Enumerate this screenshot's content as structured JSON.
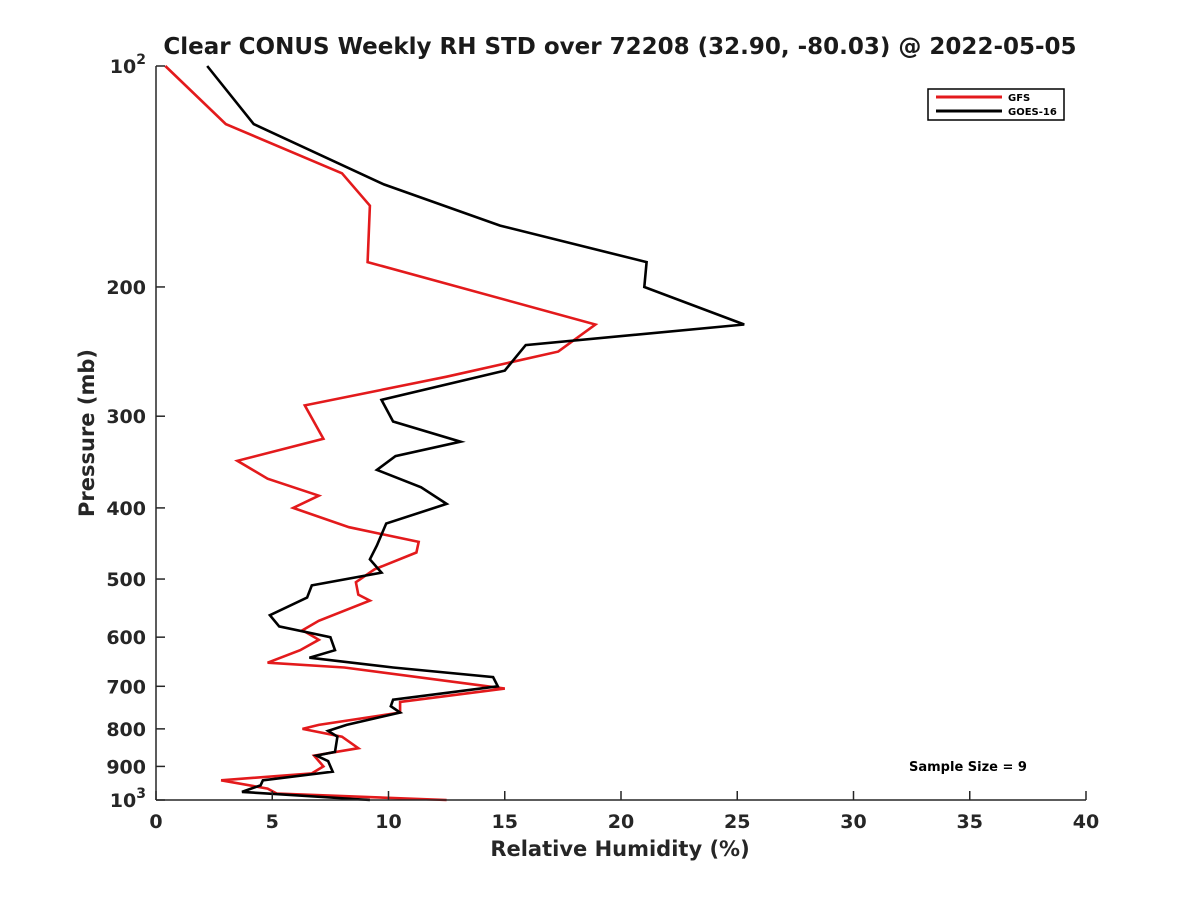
{
  "chart_data": {
    "type": "line",
    "title": "Clear CONUS Weekly RH STD over 72208 (32.90, -80.03) @ 2022-05-05",
    "xlabel": "Relative Humidity (%)",
    "ylabel": "Pressure (mb)",
    "xlim": [
      0,
      40
    ],
    "ylim": [
      100,
      1000
    ],
    "yscale": "log",
    "yreversed": true,
    "grid": false,
    "legend_position": "top-right",
    "x_ticks": [
      "0",
      "5",
      "10",
      "15",
      "20",
      "25",
      "30",
      "35",
      "40"
    ],
    "y_ticks": [
      {
        "value": 100,
        "base": "10",
        "exp": "2"
      },
      {
        "value": 200,
        "label": "200"
      },
      {
        "value": 300,
        "label": "300"
      },
      {
        "value": 400,
        "label": "400"
      },
      {
        "value": 500,
        "label": "500"
      },
      {
        "value": 600,
        "label": "600"
      },
      {
        "value": 700,
        "label": "700"
      },
      {
        "value": 800,
        "label": "800"
      },
      {
        "value": 900,
        "label": "900"
      },
      {
        "value": 1000,
        "base": "10",
        "exp": "3"
      }
    ],
    "annotation": "Sample Size = 9",
    "series": [
      {
        "name": "GFS",
        "color": "#e31a1c",
        "points": [
          [
            0.4,
            100
          ],
          [
            3.0,
            120
          ],
          [
            8.0,
            140
          ],
          [
            9.2,
            155
          ],
          [
            9.1,
            185
          ],
          [
            18.9,
            225
          ],
          [
            17.3,
            245
          ],
          [
            12.5,
            265
          ],
          [
            6.4,
            290
          ],
          [
            7.2,
            322
          ],
          [
            3.5,
            345
          ],
          [
            4.8,
            365
          ],
          [
            7.0,
            385
          ],
          [
            5.9,
            400
          ],
          [
            8.3,
            425
          ],
          [
            11.3,
            445
          ],
          [
            11.2,
            460
          ],
          [
            9.4,
            485
          ],
          [
            8.6,
            505
          ],
          [
            8.7,
            525
          ],
          [
            9.2,
            535
          ],
          [
            7.0,
            570
          ],
          [
            6.3,
            587
          ],
          [
            7.0,
            605
          ],
          [
            6.2,
            625
          ],
          [
            4.8,
            650
          ],
          [
            8.1,
            660
          ],
          [
            15.0,
            705
          ],
          [
            10.5,
            735
          ],
          [
            10.5,
            760
          ],
          [
            7.0,
            790
          ],
          [
            6.3,
            800
          ],
          [
            8.0,
            820
          ],
          [
            8.7,
            850
          ],
          [
            6.8,
            870
          ],
          [
            7.2,
            900
          ],
          [
            6.7,
            920
          ],
          [
            2.8,
            940
          ],
          [
            4.8,
            965
          ],
          [
            5.2,
            980
          ],
          [
            12.5,
            1000
          ]
        ]
      },
      {
        "name": "GOES-16",
        "color": "#000000",
        "points": [
          [
            2.2,
            100
          ],
          [
            4.2,
            120
          ],
          [
            9.8,
            145
          ],
          [
            14.8,
            165
          ],
          [
            21.1,
            185
          ],
          [
            21.0,
            200
          ],
          [
            25.3,
            225
          ],
          [
            15.9,
            240
          ],
          [
            15.0,
            260
          ],
          [
            9.7,
            285
          ],
          [
            10.2,
            305
          ],
          [
            13.1,
            325
          ],
          [
            10.3,
            340
          ],
          [
            9.5,
            355
          ],
          [
            11.4,
            375
          ],
          [
            12.5,
            395
          ],
          [
            9.9,
            420
          ],
          [
            9.5,
            450
          ],
          [
            9.2,
            470
          ],
          [
            9.7,
            490
          ],
          [
            6.7,
            510
          ],
          [
            6.5,
            530
          ],
          [
            4.9,
            560
          ],
          [
            5.3,
            580
          ],
          [
            7.5,
            600
          ],
          [
            7.7,
            625
          ],
          [
            6.6,
            640
          ],
          [
            10.2,
            660
          ],
          [
            14.5,
            680
          ],
          [
            14.7,
            700
          ],
          [
            10.2,
            730
          ],
          [
            10.1,
            745
          ],
          [
            10.5,
            760
          ],
          [
            8.2,
            790
          ],
          [
            7.4,
            805
          ],
          [
            7.8,
            820
          ],
          [
            7.7,
            860
          ],
          [
            6.9,
            870
          ],
          [
            7.4,
            885
          ],
          [
            7.6,
            915
          ],
          [
            4.6,
            940
          ],
          [
            4.5,
            955
          ],
          [
            3.7,
            975
          ],
          [
            9.2,
            1000
          ]
        ]
      }
    ]
  }
}
